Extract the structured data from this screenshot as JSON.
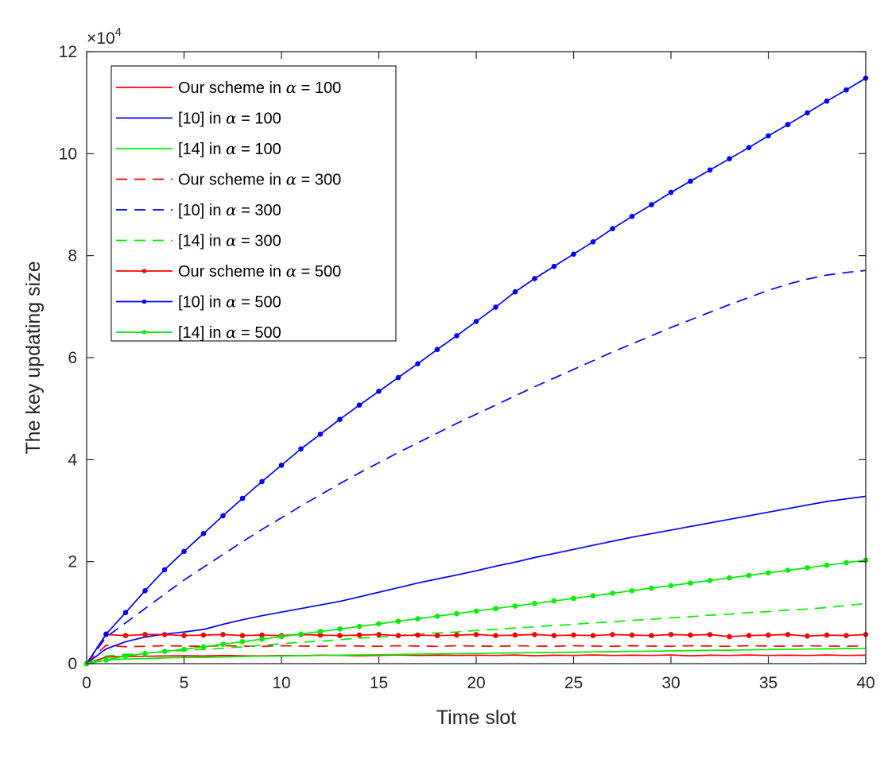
{
  "chart_data": {
    "type": "line",
    "xlabel": "Time slot",
    "ylabel": "The key updating size",
    "y_exponent_label": "×10",
    "y_exponent_power": "4",
    "xlim": [
      0,
      40
    ],
    "ylim": [
      0,
      120000
    ],
    "x_ticks": [
      0,
      5,
      10,
      15,
      20,
      25,
      30,
      35,
      40
    ],
    "y_ticks": [
      0,
      20000,
      40000,
      60000,
      80000,
      100000,
      120000
    ],
    "y_tick_labels": [
      "0",
      "2",
      "4",
      "6",
      "8",
      "10",
      "12"
    ],
    "grid": false,
    "legend_position": "top-left",
    "x": [
      0,
      1,
      2,
      3,
      4,
      5,
      6,
      7,
      8,
      9,
      10,
      11,
      12,
      13,
      14,
      15,
      16,
      17,
      18,
      19,
      20,
      21,
      22,
      23,
      24,
      25,
      26,
      27,
      28,
      29,
      30,
      31,
      32,
      33,
      34,
      35,
      36,
      37,
      38,
      39,
      40
    ],
    "series": [
      {
        "name_prefix": "Our scheme in ",
        "name_symbol": "α",
        "name_suffix": " = 100",
        "color": "#ff0000",
        "dash": "solid",
        "marker": false,
        "values": [
          0,
          1300,
          1400,
          1450,
          1500,
          1550,
          1500,
          1600,
          1550,
          1500,
          1600,
          1550,
          1650,
          1600,
          1550,
          1600,
          1700,
          1600,
          1650,
          1600,
          1650,
          1600,
          1700,
          1550,
          1650,
          1600,
          1700,
          1600,
          1650,
          1600,
          1700,
          1550,
          1650,
          1600,
          1700,
          1600,
          1650,
          1600,
          1700,
          1600,
          1650
        ]
      },
      {
        "name_prefix": "[10] in ",
        "name_symbol": "α",
        "name_suffix": " = 100",
        "color": "#0000ff",
        "dash": "solid",
        "marker": false,
        "values": [
          0,
          2900,
          4300,
          5200,
          5800,
          6200,
          6700,
          7700,
          8600,
          9400,
          10100,
          10800,
          11500,
          12200,
          13100,
          14000,
          14900,
          15800,
          16600,
          17400,
          18200,
          19100,
          19900,
          20800,
          21600,
          22400,
          23200,
          24000,
          24800,
          25500,
          26200,
          26900,
          27600,
          28300,
          29000,
          29700,
          30400,
          31100,
          31800,
          32300,
          32800
        ]
      },
      {
        "name_prefix": "[14] in ",
        "name_symbol": "α",
        "name_suffix": " = 100",
        "color": "#00ee00",
        "dash": "solid",
        "marker": false,
        "values": [
          0,
          700,
          900,
          1000,
          1100,
          1200,
          1250,
          1300,
          1400,
          1450,
          1500,
          1550,
          1600,
          1650,
          1700,
          1750,
          1800,
          1850,
          1900,
          1950,
          2000,
          2050,
          2100,
          2150,
          2200,
          2250,
          2300,
          2350,
          2400,
          2450,
          2500,
          2550,
          2600,
          2650,
          2700,
          2750,
          2800,
          2850,
          2900,
          2950,
          3000
        ]
      },
      {
        "name_prefix": "Our scheme in ",
        "name_symbol": "α",
        "name_suffix": " = 300",
        "color": "#ff0000",
        "dash": "dashed",
        "marker": false,
        "values": [
          0,
          3600,
          3300,
          3400,
          3500,
          3450,
          3400,
          3500,
          3450,
          3400,
          3500,
          3450,
          3400,
          3500,
          3450,
          3400,
          3500,
          3450,
          3400,
          3500,
          3450,
          3400,
          3500,
          3450,
          3400,
          3500,
          3450,
          3400,
          3500,
          3450,
          3400,
          3500,
          3450,
          3400,
          3500,
          3450,
          3400,
          3500,
          3450,
          3400,
          3500
        ]
      },
      {
        "name_prefix": "[10] in ",
        "name_symbol": "α",
        "name_suffix": " = 300",
        "color": "#0000ff",
        "dash": "dashed",
        "marker": false,
        "values": [
          0,
          5200,
          8000,
          10800,
          13600,
          16400,
          18900,
          21400,
          23900,
          26300,
          28600,
          30900,
          33100,
          35300,
          37400,
          39400,
          41400,
          43300,
          45200,
          47100,
          48900,
          50700,
          52500,
          54300,
          56000,
          57700,
          59400,
          61100,
          62700,
          64300,
          65900,
          67400,
          68900,
          70400,
          71800,
          73200,
          74400,
          75400,
          76200,
          76700,
          77100
        ]
      },
      {
        "name_prefix": "[14] in ",
        "name_symbol": "α",
        "name_suffix": " = 300",
        "color": "#00ee00",
        "dash": "dashed",
        "marker": false,
        "values": [
          0,
          1500,
          1800,
          2000,
          2300,
          2600,
          2800,
          3000,
          3300,
          3600,
          3900,
          4200,
          4400,
          4700,
          5000,
          5200,
          5500,
          5800,
          6000,
          6200,
          6500,
          6700,
          7000,
          7200,
          7500,
          7700,
          8000,
          8200,
          8500,
          8700,
          9000,
          9200,
          9500,
          9700,
          10000,
          10200,
          10500,
          10700,
          11000,
          11400,
          11800
        ]
      },
      {
        "name_prefix": "Our scheme in ",
        "name_symbol": "α",
        "name_suffix": " = 500",
        "color": "#ff0000",
        "dash": "solid",
        "marker": true,
        "values": [
          0,
          5700,
          5500,
          5700,
          5700,
          5500,
          5600,
          5700,
          5500,
          5600,
          5500,
          5700,
          5600,
          5500,
          5600,
          5700,
          5500,
          5600,
          5500,
          5600,
          5700,
          5500,
          5600,
          5700,
          5500,
          5600,
          5500,
          5700,
          5600,
          5500,
          5700,
          5600,
          5700,
          5300,
          5500,
          5600,
          5700,
          5400,
          5600,
          5500,
          5700
        ]
      },
      {
        "name_prefix": "[10] in ",
        "name_symbol": "α",
        "name_suffix": " = 500",
        "color": "#0000ff",
        "dash": "solid",
        "marker": true,
        "values": [
          0,
          5800,
          10000,
          14300,
          18400,
          22000,
          25500,
          29000,
          32400,
          35700,
          38900,
          42100,
          45000,
          47900,
          50700,
          53400,
          56100,
          58800,
          61600,
          64300,
          67100,
          69900,
          72900,
          75500,
          77900,
          80300,
          82700,
          85300,
          87700,
          90000,
          92400,
          94600,
          96800,
          99000,
          101200,
          103500,
          105700,
          108000,
          110300,
          112500,
          114800
        ]
      },
      {
        "name_prefix": "[14] in ",
        "name_symbol": "α",
        "name_suffix": " = 500",
        "color": "#00ee00",
        "dash": "solid",
        "marker": true,
        "values": [
          0,
          700,
          1500,
          2000,
          2400,
          2800,
          3300,
          3800,
          4300,
          4800,
          5300,
          5800,
          6300,
          6800,
          7300,
          7800,
          8300,
          8800,
          9300,
          9800,
          10300,
          10800,
          11300,
          11800,
          12300,
          12800,
          13300,
          13800,
          14300,
          14800,
          15300,
          15800,
          16300,
          16800,
          17300,
          17800,
          18300,
          18800,
          19300,
          19800,
          20300
        ]
      }
    ]
  }
}
